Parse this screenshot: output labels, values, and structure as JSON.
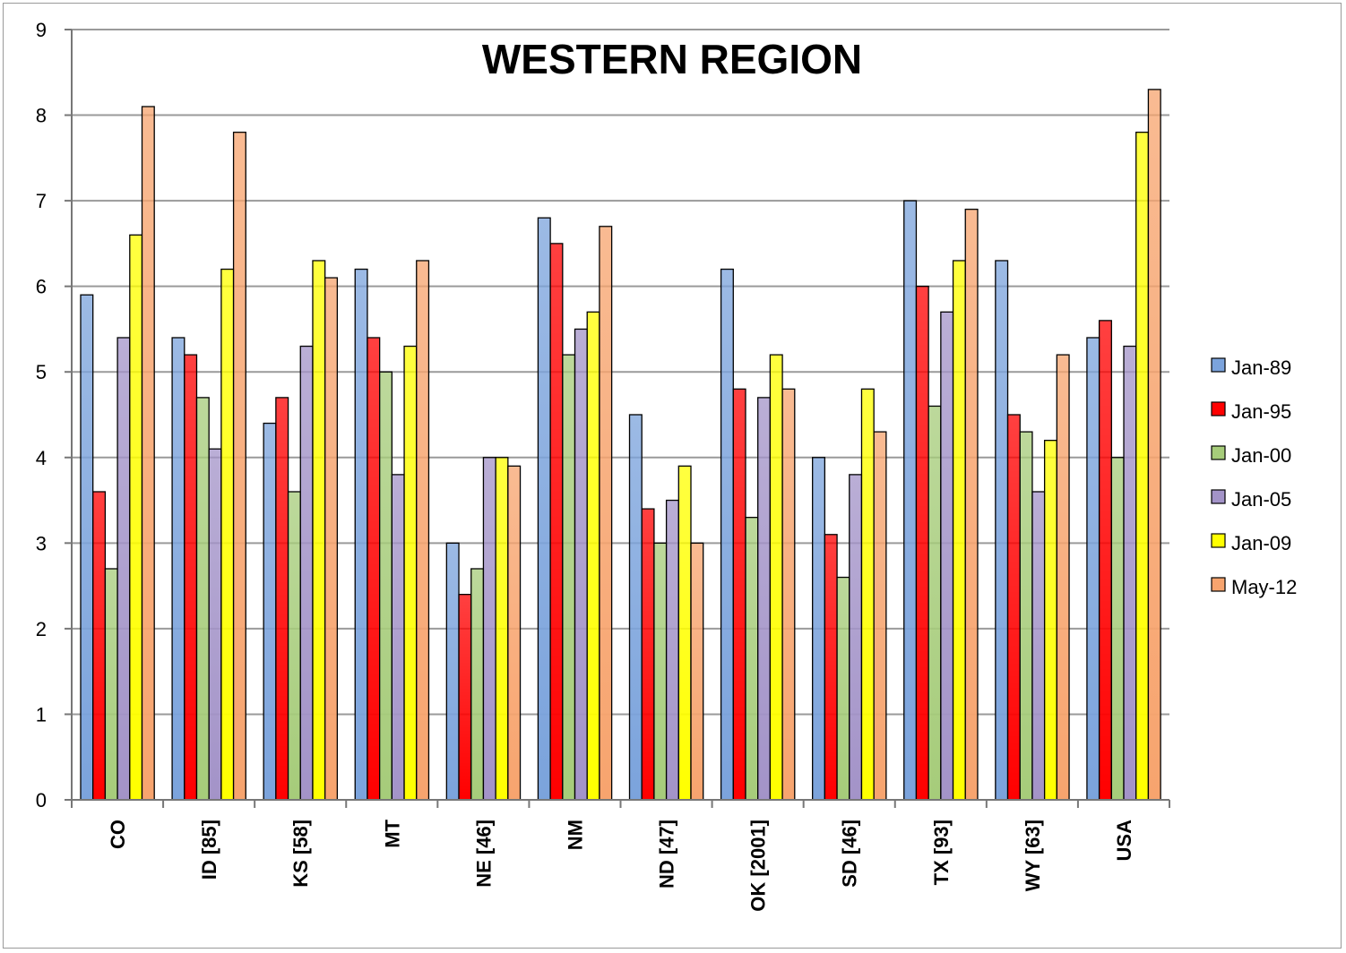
{
  "chart_data": {
    "type": "bar",
    "title": "WESTERN REGION",
    "xlabel": "",
    "ylabel": "",
    "ylim": [
      0,
      9
    ],
    "yticks": [
      "0",
      "1",
      "2",
      "3",
      "4",
      "5",
      "6",
      "7",
      "8",
      "9"
    ],
    "grid": true,
    "legend_position": "right",
    "categories": [
      "CO",
      "ID [85]",
      "KS [58]",
      "MT",
      "NE [46]",
      "NM",
      "ND [47]",
      "OK [2001]",
      "SD [46]",
      "TX [93]",
      "WY [63]",
      "USA"
    ],
    "series": [
      {
        "name": "Jan-89",
        "color": "#7ba3dc",
        "values": [
          5.9,
          5.4,
          4.4,
          6.2,
          3.0,
          6.8,
          4.5,
          6.2,
          4.0,
          7.0,
          6.3,
          5.4
        ]
      },
      {
        "name": "Jan-95",
        "color": "#ff0000",
        "values": [
          3.6,
          5.2,
          4.7,
          5.4,
          2.4,
          6.5,
          3.4,
          4.8,
          3.1,
          6.0,
          4.5,
          5.6
        ]
      },
      {
        "name": "Jan-00",
        "color": "#a6cc7a",
        "values": [
          2.7,
          4.7,
          3.6,
          5.0,
          2.7,
          5.2,
          3.0,
          3.3,
          2.6,
          4.6,
          4.3,
          4.0
        ]
      },
      {
        "name": "Jan-05",
        "color": "#a393c8",
        "values": [
          5.4,
          4.1,
          5.3,
          3.8,
          4.0,
          5.5,
          3.5,
          4.7,
          3.8,
          5.7,
          3.6,
          5.3
        ]
      },
      {
        "name": "Jan-09",
        "color": "#ffff00",
        "values": [
          6.6,
          6.2,
          6.3,
          5.3,
          4.0,
          5.7,
          3.9,
          5.2,
          4.8,
          6.3,
          4.2,
          7.8
        ]
      },
      {
        "name": "May-12",
        "color": "#f7a46e",
        "values": [
          8.1,
          7.8,
          6.1,
          6.3,
          3.9,
          6.7,
          3.0,
          4.8,
          4.3,
          6.9,
          5.2,
          8.3
        ]
      }
    ]
  }
}
